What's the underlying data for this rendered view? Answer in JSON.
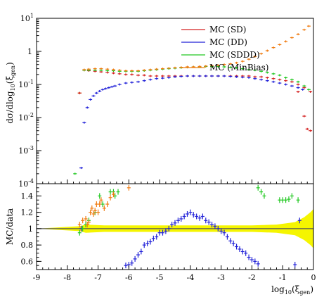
{
  "chart_data": [
    {
      "type": "scatter",
      "panel": "top",
      "yscale": "log",
      "ylabel": "dσ/dlog10(ξgen)",
      "xlim": [
        -9,
        0
      ],
      "ylim_exp": [
        -4,
        1
      ],
      "y_ticks": [
        {
          "exp": -4,
          "label": "10",
          "sup": "-4"
        },
        {
          "exp": -3,
          "label": "10",
          "sup": "-3"
        },
        {
          "exp": -2,
          "label": "10",
          "sup": "-2"
        },
        {
          "exp": -1,
          "label": "10",
          "sup": "-1"
        },
        {
          "exp": 0,
          "label": "1",
          "sup": ""
        },
        {
          "exp": 1,
          "label": "10",
          "sup": "1"
        }
      ],
      "legend_position": "top-right",
      "series": [
        {
          "name": "MC (SD)",
          "color": "#d42020",
          "style": "hist",
          "x": [
            -7.45,
            -7.3,
            -7.1,
            -6.9,
            -6.7,
            -6.5,
            -6.3,
            -6.1,
            -5.9,
            -5.7,
            -5.5,
            -5.3,
            -5.1,
            -4.9,
            -4.7,
            -4.5,
            -4.3,
            -4.1,
            -3.9,
            -3.7,
            -3.5,
            -3.3,
            -3.1,
            -2.9,
            -2.7,
            -2.5,
            -2.3,
            -2.1,
            -1.9,
            -1.7,
            -1.5,
            -1.3,
            -1.1,
            -0.9,
            -0.7,
            -0.5,
            -0.3,
            -0.1
          ],
          "y": [
            0.27,
            0.26,
            0.25,
            0.24,
            0.23,
            0.22,
            0.21,
            0.2,
            0.2,
            0.19,
            0.19,
            0.18,
            0.18,
            0.18,
            0.18,
            0.18,
            0.18,
            0.18,
            0.18,
            0.18,
            0.18,
            0.18,
            0.18,
            0.18,
            0.18,
            0.18,
            0.18,
            0.18,
            0.17,
            0.17,
            0.16,
            0.15,
            0.14,
            0.13,
            0.12,
            0.1,
            0.08,
            0.06
          ]
        },
        {
          "name": "MC (DD)",
          "color": "#2020d8",
          "style": "hist",
          "x": [
            -7.55,
            -7.45,
            -7.35,
            -7.25,
            -7.15,
            -7.05,
            -6.95,
            -6.85,
            -6.75,
            -6.65,
            -6.55,
            -6.45,
            -6.3,
            -6.1,
            -5.9,
            -5.7,
            -5.5,
            -5.3,
            -5.1,
            -4.9,
            -4.7,
            -4.5,
            -4.3,
            -4.1,
            -3.9,
            -3.7,
            -3.5,
            -3.3,
            -3.1,
            -2.9,
            -2.7,
            -2.5,
            -2.3,
            -2.1,
            -1.9,
            -1.7,
            -1.5,
            -1.3,
            -1.1,
            -0.9,
            -0.7,
            -0.5,
            -0.35
          ],
          "y": [
            0.0003,
            0.007,
            0.02,
            0.035,
            0.045,
            0.055,
            0.063,
            0.07,
            0.075,
            0.08,
            0.085,
            0.09,
            0.1,
            0.11,
            0.115,
            0.12,
            0.13,
            0.14,
            0.15,
            0.155,
            0.16,
            0.17,
            0.175,
            0.18,
            0.18,
            0.18,
            0.18,
            0.18,
            0.18,
            0.18,
            0.175,
            0.17,
            0.165,
            0.16,
            0.15,
            0.14,
            0.13,
            0.12,
            0.11,
            0.1,
            0.09,
            0.08,
            0.07
          ]
        },
        {
          "name": "MC (SDDD)",
          "color": "#20c820",
          "style": "hist",
          "x": [
            -7.75,
            -7.6,
            -7.45,
            -7.3,
            -7.1,
            -6.9,
            -6.7,
            -6.5,
            -6.3,
            -6.1,
            -5.9,
            -5.7,
            -5.5,
            -5.3,
            -5.1,
            -4.9,
            -4.7,
            -4.5,
            -4.3,
            -4.1,
            -3.9,
            -3.7,
            -3.5,
            -3.3,
            -3.1,
            -2.9,
            -2.7,
            -2.5,
            -2.3,
            -2.1,
            -1.9,
            -1.7,
            -1.5,
            -1.3,
            -1.1,
            -0.9,
            -0.7,
            -0.5,
            -0.3,
            -0.15
          ],
          "y": [
            0.0002,
            0.055,
            0.27,
            0.27,
            0.27,
            0.27,
            0.26,
            0.26,
            0.25,
            0.25,
            0.25,
            0.25,
            0.26,
            0.27,
            0.28,
            0.29,
            0.3,
            0.31,
            0.32,
            0.33,
            0.34,
            0.34,
            0.35,
            0.35,
            0.35,
            0.34,
            0.33,
            0.32,
            0.3,
            0.28,
            0.27,
            0.25,
            0.23,
            0.21,
            0.19,
            0.16,
            0.14,
            0.12,
            0.09,
            0.07
          ]
        },
        {
          "name": "MC (MinBias)",
          "color": "#f07b10",
          "style": "hist",
          "x": [
            -7.6,
            -7.45,
            -7.3,
            -7.1,
            -6.9,
            -6.7,
            -6.5,
            -6.3,
            -6.1,
            -5.9,
            -5.7,
            -5.5,
            -5.3,
            -5.1,
            -4.9,
            -4.7,
            -4.5,
            -4.3,
            -4.1,
            -3.9,
            -3.7,
            -3.5,
            -3.3,
            -3.1,
            -2.9,
            -2.7,
            -2.5,
            -2.3,
            -2.1,
            -1.9,
            -1.7,
            -1.5,
            -1.3,
            -1.1,
            -0.9,
            -0.7,
            -0.5,
            -0.3,
            -0.15
          ],
          "y": [
            0.055,
            0.28,
            0.29,
            0.3,
            0.3,
            0.29,
            0.28,
            0.27,
            0.26,
            0.26,
            0.26,
            0.27,
            0.28,
            0.29,
            0.3,
            0.31,
            0.32,
            0.33,
            0.34,
            0.34,
            0.35,
            0.36,
            0.37,
            0.38,
            0.4,
            0.42,
            0.45,
            0.5,
            0.58,
            0.7,
            0.85,
            1.05,
            1.3,
            1.6,
            2.0,
            2.6,
            3.3,
            4.5,
            5.8
          ]
        },
        {
          "name": "",
          "color": "#d42020",
          "style": "points",
          "x": [
            -7.6,
            -0.5,
            -0.3,
            -0.2,
            -0.1
          ],
          "y": [
            0.055,
            0.06,
            0.011,
            0.0045,
            0.004
          ]
        }
      ]
    },
    {
      "type": "scatter",
      "panel": "bottom",
      "ylabel": "MC/data",
      "xlabel": "log10(ξgen)",
      "xlim": [
        -9,
        0
      ],
      "ylim": [
        0.5,
        1.55
      ],
      "x_ticks": [
        "-9",
        "-8",
        "-7",
        "-6",
        "-5",
        "-4",
        "-3",
        "-2",
        "-1",
        "0"
      ],
      "y_ticks": [
        "0.6",
        "0.8",
        "1",
        "1.2",
        "1.4"
      ],
      "uncertainty_band_color": "#f5f500",
      "series": [
        {
          "name": "MC (DD)",
          "color": "#2020d8",
          "x": [
            -7.55,
            -6.1,
            -6.0,
            -5.9,
            -5.8,
            -5.7,
            -5.6,
            -5.5,
            -5.4,
            -5.3,
            -5.2,
            -5.1,
            -5.0,
            -4.9,
            -4.8,
            -4.7,
            -4.6,
            -4.5,
            -4.4,
            -4.3,
            -4.2,
            -4.1,
            -4.0,
            -3.9,
            -3.8,
            -3.7,
            -3.6,
            -3.5,
            -3.4,
            -3.3,
            -3.2,
            -3.1,
            -3.0,
            -2.9,
            -2.8,
            -2.7,
            -2.6,
            -2.5,
            -2.4,
            -2.3,
            -2.2,
            -2.1,
            -2.0,
            -1.9,
            -1.8,
            -0.6,
            -0.45
          ],
          "y": [
            1.0,
            0.55,
            0.56,
            0.58,
            0.63,
            0.68,
            0.72,
            0.8,
            0.82,
            0.84,
            0.88,
            0.9,
            0.95,
            0.95,
            0.97,
            1.0,
            1.05,
            1.07,
            1.1,
            1.12,
            1.15,
            1.18,
            1.2,
            1.17,
            1.15,
            1.13,
            1.15,
            1.1,
            1.08,
            1.05,
            1.03,
            1.0,
            0.97,
            0.95,
            0.9,
            0.85,
            0.82,
            0.78,
            0.75,
            0.72,
            0.7,
            0.65,
            0.62,
            0.6,
            0.57,
            0.56,
            1.1
          ]
        },
        {
          "name": "MC (SDDD)",
          "color": "#20c820",
          "x": [
            -7.6,
            -7.5,
            -7.4,
            -7.3,
            -7.1,
            -6.95,
            -6.85,
            -6.6,
            -6.5,
            -6.45,
            -6.35,
            -1.8,
            -1.7,
            -1.6,
            -1.1,
            -1.0,
            -0.9,
            -0.8,
            -0.7,
            -0.5
          ],
          "y": [
            0.95,
            1.0,
            1.05,
            1.1,
            1.2,
            1.4,
            1.3,
            1.45,
            1.45,
            1.4,
            1.45,
            1.5,
            1.45,
            1.4,
            1.35,
            1.35,
            1.35,
            1.36,
            1.4,
            1.35
          ]
        },
        {
          "name": "MC (MinBias)",
          "color": "#f07b10",
          "x": [
            -7.6,
            -7.5,
            -7.4,
            -7.35,
            -7.3,
            -7.25,
            -7.2,
            -7.15,
            -7.1,
            -7.05,
            -7.0,
            -6.95,
            -6.9,
            -6.8,
            -6.7,
            -6.6,
            -6.5,
            -6.0
          ],
          "y": [
            1.05,
            1.1,
            1.12,
            1.05,
            1.08,
            1.2,
            1.25,
            1.18,
            1.22,
            1.3,
            1.2,
            1.3,
            1.35,
            1.25,
            1.3,
            1.38,
            1.42,
            1.5
          ]
        }
      ]
    }
  ]
}
